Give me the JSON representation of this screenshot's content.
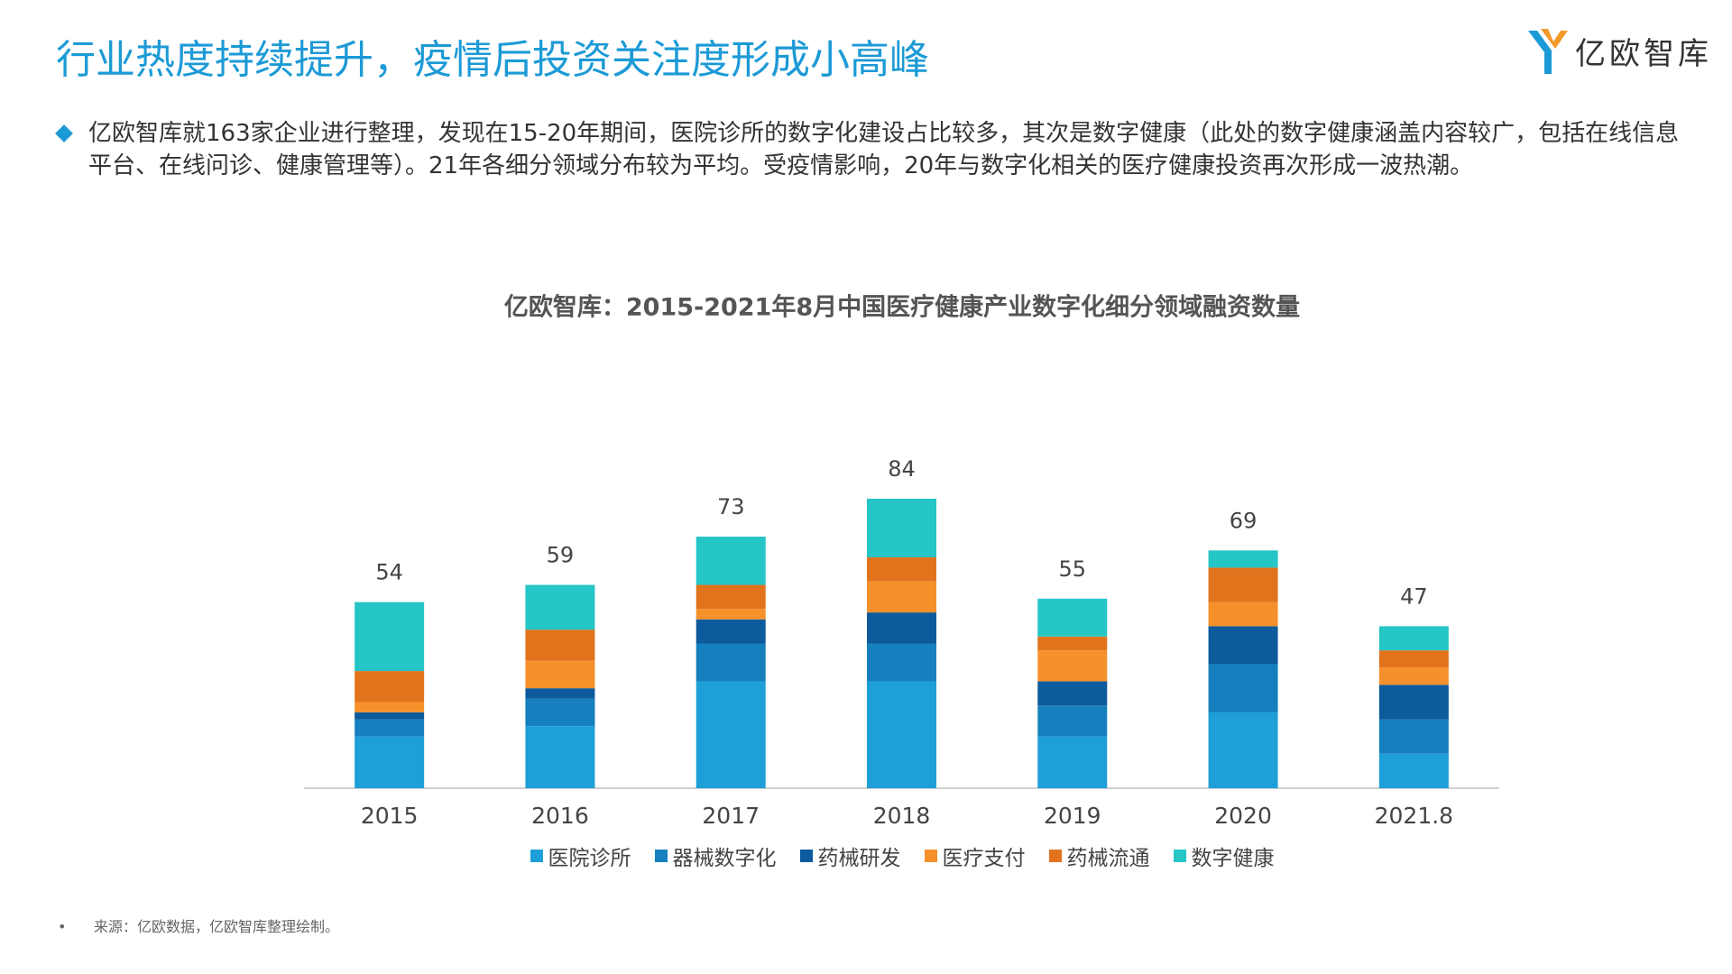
{
  "header": {
    "title": "行业热度持续提升，疫情后投资关注度形成小高峰",
    "logo": "亿欧智库"
  },
  "bullet": "亿欧智库就163家企业进行整理，发现在15-20年期间，医院诊所的数字化建设占比较多，其次是数字健康（此处的数字健康涵盖内容较广，包括在线信息平台、在线问诊、健康管理等）。21年各细分领域分布较为平均。受疫情影响，20年与数字化相关的医疗健康投资再次形成一波热潮。",
  "chart_data": {
    "type": "bar",
    "stacked": true,
    "title": "亿欧智库：2015-2021年8月中国医疗健康产业数字化细分领域融资数量",
    "categories": [
      "2015",
      "2016",
      "2017",
      "2018",
      "2019",
      "2020",
      "2021.8"
    ],
    "totals": [
      54,
      59,
      73,
      84,
      55,
      69,
      47
    ],
    "series": [
      {
        "name": "医院诊所",
        "color": "#1e9fd8",
        "values": [
          15,
          18,
          31,
          31,
          15,
          22,
          10
        ]
      },
      {
        "name": "器械数字化",
        "color": "#1580bd",
        "values": [
          5,
          8,
          11,
          11,
          9,
          14,
          10
        ]
      },
      {
        "name": "药械研发",
        "color": "#0d5a9c",
        "values": [
          2,
          3,
          7,
          9,
          7,
          11,
          10
        ]
      },
      {
        "name": "医疗支付",
        "color": "#f6902a",
        "values": [
          3,
          8,
          3,
          9,
          9,
          7,
          5
        ]
      },
      {
        "name": "药械流通",
        "color": "#e2731d",
        "values": [
          9,
          9,
          7,
          7,
          4,
          10,
          5
        ]
      },
      {
        "name": "数字健康",
        "color": "#26c5c6",
        "values": [
          20,
          13,
          14,
          17,
          11,
          5,
          7
        ]
      }
    ],
    "legend": "bottom"
  },
  "footer": {
    "source": "来源：亿欧数据，亿欧智库整理绘制。"
  }
}
